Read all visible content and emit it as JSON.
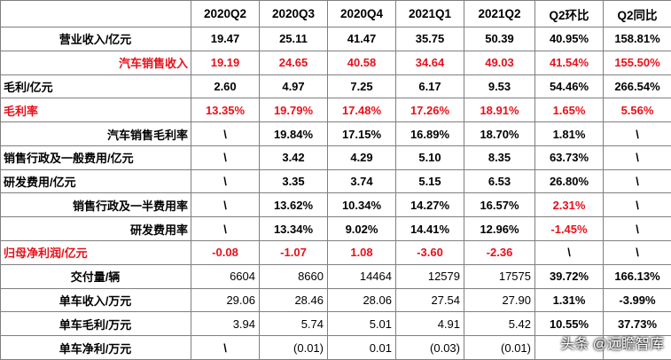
{
  "table": {
    "headers": [
      "",
      "2020Q2",
      "2020Q3",
      "2020Q4",
      "2021Q1",
      "2021Q2",
      "Q2环比",
      "Q2同比"
    ],
    "rows": [
      {
        "label": "营业收入/亿元",
        "cells": [
          "19.47",
          "25.11",
          "41.47",
          "35.75",
          "50.39",
          "40.95%",
          "158.81%"
        ]
      },
      {
        "label": "汽车销售收入",
        "cells": [
          "19.19",
          "24.65",
          "40.58",
          "34.64",
          "49.03",
          "41.54%",
          "155.50%"
        ]
      },
      {
        "label": "毛利/亿元",
        "cells": [
          "2.60",
          "4.97",
          "7.25",
          "6.17",
          "9.53",
          "54.46%",
          "266.54%"
        ]
      },
      {
        "label": "毛利率",
        "cells": [
          "13.35%",
          "19.79%",
          "17.48%",
          "17.26%",
          "18.91%",
          "1.65%",
          "5.56%"
        ]
      },
      {
        "label": "汽车销售毛利率",
        "cells": [
          "\\",
          "19.84%",
          "17.15%",
          "16.89%",
          "18.70%",
          "1.81%",
          "\\"
        ]
      },
      {
        "label": "销售行政及一般费用/亿元",
        "cells": [
          "\\",
          "3.42",
          "4.29",
          "5.10",
          "8.35",
          "63.73%",
          "\\"
        ]
      },
      {
        "label": "研发费用/亿元",
        "cells": [
          "\\",
          "3.35",
          "3.74",
          "5.15",
          "6.53",
          "26.80%",
          "\\"
        ]
      },
      {
        "label": "销售行政及一半费用率",
        "cells": [
          "\\",
          "13.62%",
          "10.34%",
          "14.27%",
          "16.57%",
          "2.31%",
          "\\"
        ]
      },
      {
        "label": "研发费用率",
        "cells": [
          "\\",
          "13.34%",
          "9.02%",
          "14.41%",
          "12.96%",
          "-1.45%",
          "\\"
        ]
      },
      {
        "label": "归母净利润/亿元",
        "cells": [
          "-0.08",
          "-1.07",
          "1.08",
          "-3.60",
          "-2.36",
          "\\",
          "\\"
        ]
      },
      {
        "label": "交付量/辆",
        "cells": [
          "6604",
          "8660",
          "14464",
          "12579",
          "17575",
          "39.72%",
          "166.13%"
        ]
      },
      {
        "label": "单车收入/万元",
        "cells": [
          "29.06",
          "28.46",
          "28.06",
          "27.54",
          "27.90",
          "1.31%",
          "-3.99%"
        ]
      },
      {
        "label": "单车毛利/万元",
        "cells": [
          "3.94",
          "5.74",
          "5.01",
          "4.91",
          "5.42",
          "10.55%",
          "37.73%"
        ]
      },
      {
        "label": "单车净利/万元",
        "cells": [
          "\\",
          "(0.01)",
          "0.01",
          "(0.03)",
          "(0.01)",
          "",
          ""
        ]
      }
    ]
  },
  "watermark": "头条 @远瞻智库",
  "colors": {
    "red": "#e8101a",
    "border": "#7f7f7f",
    "text": "#000000"
  }
}
